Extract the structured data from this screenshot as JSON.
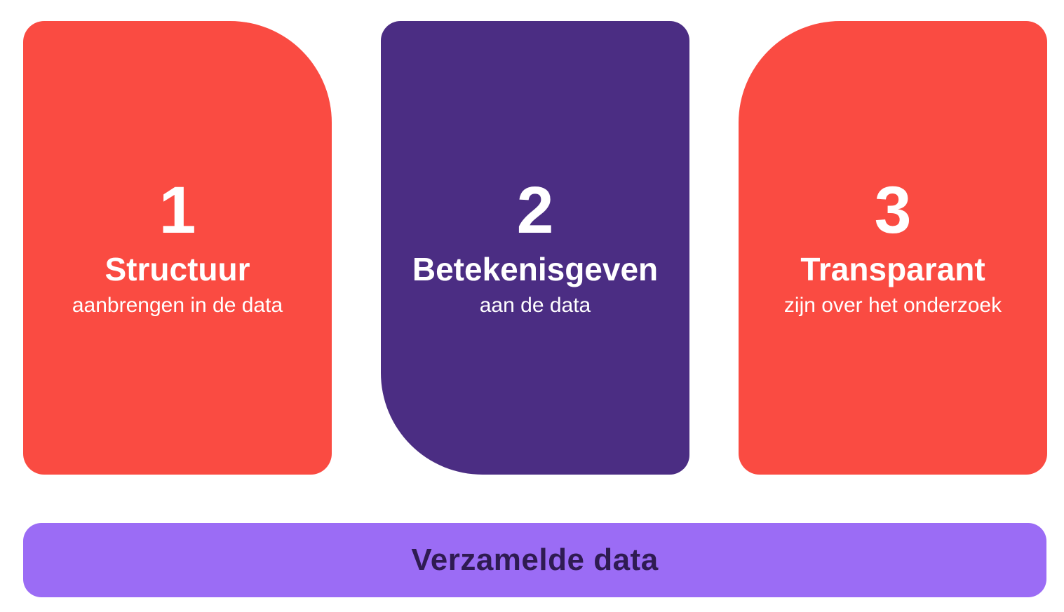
{
  "colors": {
    "card_red": "#FA4B42",
    "card_dark_purple": "#4B2D83",
    "bar_light_purple": "#9B6CF5",
    "card_text": "#FFFFFF",
    "bar_text": "#2F1B52",
    "background": "#FFFFFF"
  },
  "cards": [
    {
      "number": "1",
      "title": "Structuur",
      "subtitle": "aanbrengen in de data",
      "color": "#FA4B42",
      "large_rounded_corner": "top-right"
    },
    {
      "number": "2",
      "title": "Betekenisgeven",
      "subtitle": "aan de data",
      "color": "#4B2D83",
      "large_rounded_corner": "bottom-left"
    },
    {
      "number": "3",
      "title": "Transparant",
      "subtitle": "zijn over het onderzoek",
      "color": "#FA4B42",
      "large_rounded_corner": "top-left"
    }
  ],
  "bottom_bar": {
    "label": "Verzamelde data",
    "color": "#9B6CF5",
    "text_color": "#2F1B52"
  }
}
